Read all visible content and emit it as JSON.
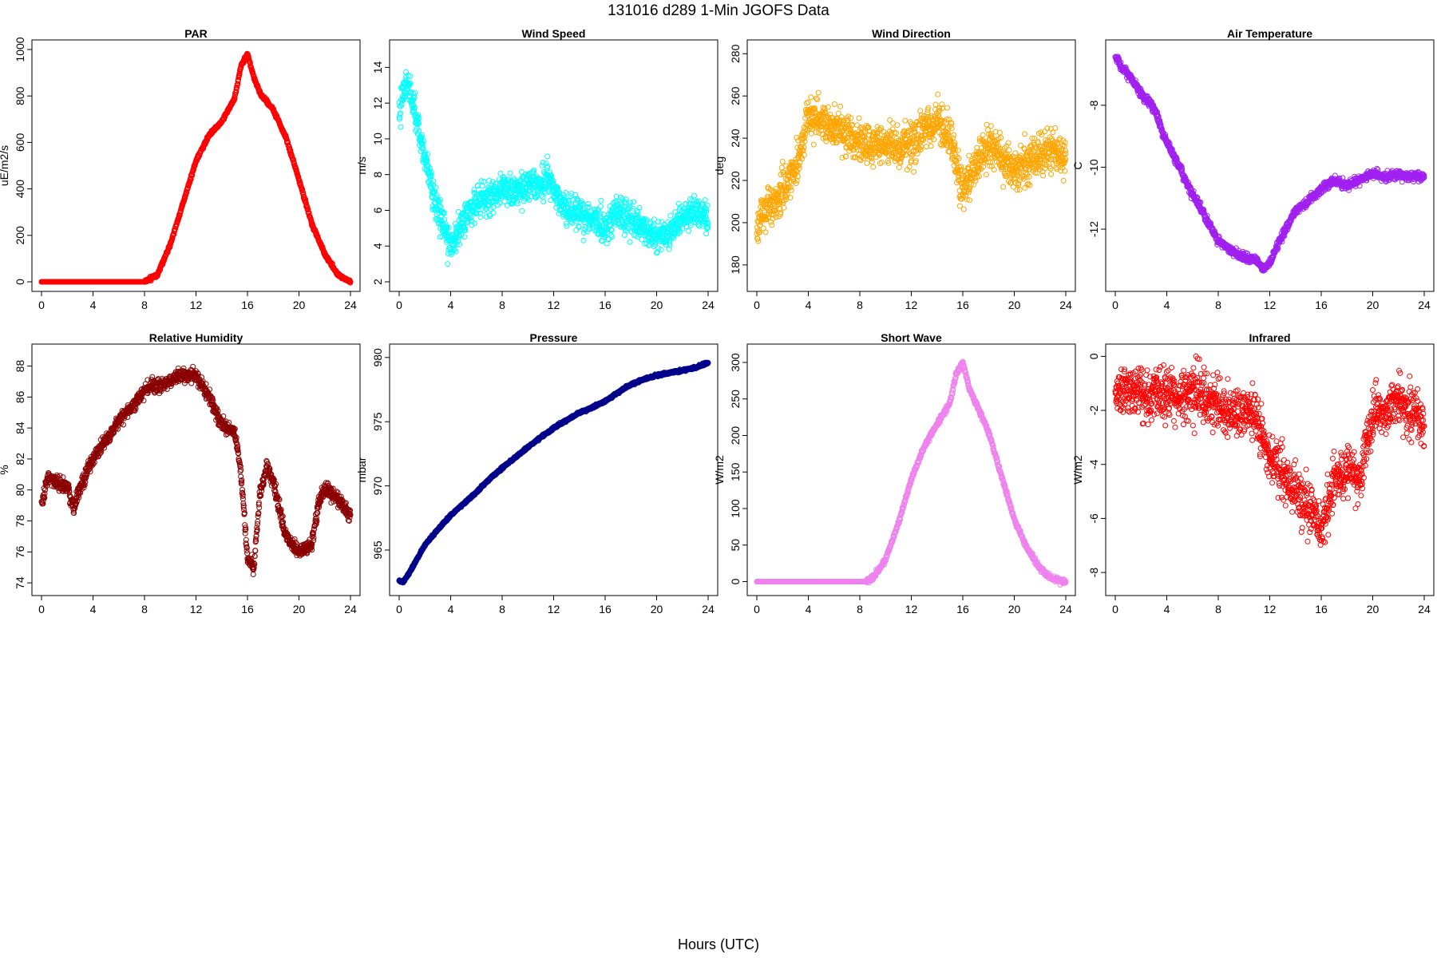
{
  "figure": {
    "title": "131016   d289   1-Min  JGOFS Data",
    "xlabel": "Hours (UTC)"
  },
  "chart_data": [
    {
      "type": "scatter",
      "title": "PAR",
      "ylabel": "uE/m2/s",
      "color": "#ff0000",
      "xlim": [
        0,
        24
      ],
      "ylim": [
        0,
        1000
      ],
      "xticks": [
        0,
        4,
        8,
        12,
        16,
        20,
        24
      ],
      "yticks": [
        0,
        200,
        400,
        600,
        800,
        1000
      ],
      "noise": 6,
      "series": [
        {
          "x": [
            0,
            8,
            9,
            10,
            11,
            12,
            13,
            14,
            15,
            15.5,
            16,
            16.5,
            17,
            18,
            19,
            20,
            21,
            22,
            23,
            24
          ],
          "y": [
            0,
            0,
            30,
            160,
            340,
            520,
            630,
            690,
            790,
            930,
            980,
            880,
            810,
            740,
            620,
            440,
            250,
            120,
            30,
            0
          ]
        }
      ]
    },
    {
      "type": "scatter",
      "title": "Wind Speed",
      "ylabel": "m/s",
      "color": "#00ffff",
      "xlim": [
        0,
        24
      ],
      "ylim": [
        2,
        15
      ],
      "xticks": [
        0,
        4,
        8,
        12,
        16,
        20,
        24
      ],
      "yticks": [
        2,
        4,
        6,
        8,
        10,
        12,
        14
      ],
      "noise": 0.8,
      "series": [
        {
          "x": [
            0,
            0.5,
            1,
            1.5,
            2,
            2.5,
            3,
            3.5,
            4,
            5,
            6,
            7,
            8,
            9,
            10,
            11,
            11.5,
            12,
            13,
            14,
            15,
            16,
            17,
            18,
            19,
            20,
            21,
            22,
            23,
            24
          ],
          "y": [
            11.5,
            13.5,
            12,
            10.5,
            9,
            7.5,
            6,
            5,
            4,
            5.5,
            6.5,
            6.8,
            7.2,
            7,
            7.3,
            7.5,
            8,
            7.2,
            6,
            5.8,
            5.5,
            5,
            6,
            5.5,
            5,
            4.5,
            4.8,
            5.5,
            6,
            5.5
          ]
        }
      ]
    },
    {
      "type": "scatter",
      "title": "Wind Direction",
      "ylabel": "deg",
      "color": "#ffa500",
      "xlim": [
        0,
        24
      ],
      "ylim": [
        172,
        282
      ],
      "xticks": [
        0,
        4,
        8,
        12,
        16,
        20,
        24
      ],
      "yticks": [
        180,
        200,
        220,
        240,
        260,
        280
      ],
      "noise": 9,
      "series": [
        {
          "x": [
            0,
            1,
            2,
            3,
            4,
            5,
            6,
            7,
            8,
            9,
            10,
            11,
            12,
            13,
            14,
            15,
            16,
            17,
            18,
            19,
            20,
            21,
            22,
            23,
            24
          ],
          "y": [
            200,
            208,
            215,
            225,
            250,
            248,
            245,
            240,
            238,
            237,
            238,
            236,
            237,
            242,
            250,
            240,
            215,
            228,
            236,
            232,
            225,
            228,
            232,
            235,
            230
          ]
        }
      ]
    },
    {
      "type": "scatter",
      "title": "Air Temperature",
      "ylabel": "C",
      "color": "#a020f0",
      "xlim": [
        0,
        24
      ],
      "ylim": [
        -13.7,
        -6.2
      ],
      "xticks": [
        0,
        4,
        8,
        12,
        16,
        20,
        24
      ],
      "yticks": [
        -12,
        -10,
        -8
      ],
      "noise": 0.12,
      "series": [
        {
          "x": [
            0,
            0.5,
            1,
            1.5,
            2,
            3,
            4,
            5,
            6,
            7,
            8,
            9,
            10,
            11,
            11.5,
            12,
            12.5,
            13,
            14,
            15,
            16,
            17,
            18,
            19,
            20,
            21,
            22,
            23,
            24
          ],
          "y": [
            -6.4,
            -6.8,
            -7,
            -7.3,
            -7.6,
            -8.1,
            -9.2,
            -10,
            -10.9,
            -11.6,
            -12.4,
            -12.7,
            -12.9,
            -13,
            -13.3,
            -13.1,
            -12.6,
            -12.2,
            -11.4,
            -11.1,
            -10.7,
            -10.4,
            -10.6,
            -10.4,
            -10.2,
            -10.3,
            -10.25,
            -10.3,
            -10.3
          ]
        }
      ]
    },
    {
      "type": "scatter",
      "title": "Relative Humidity",
      "ylabel": "%",
      "color": "#8b0000",
      "xlim": [
        0,
        24
      ],
      "ylim": [
        73.8,
        88.8
      ],
      "xticks": [
        0,
        4,
        8,
        12,
        16,
        20,
        24
      ],
      "yticks": [
        74,
        76,
        78,
        80,
        82,
        84,
        86,
        88
      ],
      "noise": 0.4,
      "series": [
        {
          "x": [
            0,
            0.5,
            1,
            2,
            2.5,
            3,
            4,
            5,
            6,
            7,
            8,
            9,
            10,
            11,
            12,
            12.5,
            13,
            14,
            15,
            15.5,
            16,
            16.5,
            17,
            17.5,
            18,
            19,
            20,
            21,
            21.5,
            22,
            23,
            24
          ],
          "y": [
            79,
            80.8,
            80.5,
            80.2,
            78.8,
            80.2,
            82,
            83.2,
            84.5,
            85.3,
            86.5,
            86.8,
            87,
            87.5,
            87.4,
            86.8,
            86,
            84.2,
            83.8,
            81,
            75.5,
            75,
            80,
            81.5,
            80.5,
            77,
            76,
            76.5,
            79,
            80,
            79.5,
            78.3
          ]
        }
      ]
    },
    {
      "type": "scatter",
      "title": "Pressure",
      "ylabel": "mbar",
      "color": "#00008b",
      "xlim": [
        0,
        24
      ],
      "ylim": [
        962.2,
        980.3
      ],
      "xticks": [
        0,
        4,
        8,
        12,
        16,
        20,
        24
      ],
      "yticks": [
        965,
        970,
        975,
        980
      ],
      "noise": 0.08,
      "series": [
        {
          "x": [
            0,
            0.3,
            0.6,
            1,
            1.5,
            2,
            3,
            4,
            5,
            6,
            7,
            8,
            9,
            10,
            11,
            12,
            13,
            14,
            15,
            16,
            17,
            18,
            19,
            20,
            21,
            22,
            23,
            24
          ],
          "y": [
            962.6,
            962.5,
            962.9,
            963.6,
            964.5,
            965.4,
            966.6,
            967.7,
            968.6,
            969.5,
            970.5,
            971.4,
            972.2,
            973,
            973.8,
            974.5,
            975.1,
            975.7,
            976.1,
            976.6,
            977.3,
            977.9,
            978.3,
            978.6,
            978.8,
            979,
            979.2,
            979.6
          ]
        }
      ]
    },
    {
      "type": "scatter",
      "title": "Short Wave",
      "ylabel": "W/m2",
      "color": "#ee82ee",
      "xlim": [
        0,
        24
      ],
      "ylim": [
        -6,
        312
      ],
      "xticks": [
        0,
        4,
        8,
        12,
        16,
        20,
        24
      ],
      "yticks": [
        0,
        50,
        100,
        150,
        200,
        250,
        300
      ],
      "noise": 3,
      "series": [
        {
          "x": [
            0,
            8.5,
            9,
            10,
            11,
            12,
            13,
            14,
            15,
            15.5,
            16,
            16.5,
            17,
            18,
            19,
            20,
            21,
            22,
            23,
            24
          ],
          "y": [
            0,
            0,
            5,
            30,
            80,
            140,
            185,
            215,
            245,
            285,
            300,
            265,
            245,
            205,
            145,
            85,
            45,
            18,
            3,
            0
          ]
        }
      ]
    },
    {
      "type": "scatter",
      "title": "Infrared",
      "ylabel": "W/m2",
      "color": "#ff0000",
      "xlim": [
        0,
        24
      ],
      "ylim": [
        -8.5,
        0.1
      ],
      "xticks": [
        0,
        4,
        8,
        12,
        16,
        20,
        24
      ],
      "yticks": [
        -8,
        -6,
        -4,
        -2,
        0
      ],
      "noise": 0.8,
      "series": [
        {
          "x": [
            0,
            1,
            2,
            3,
            4,
            5,
            6,
            7,
            8,
            9,
            10,
            11,
            12,
            13,
            14,
            15,
            16,
            17,
            18,
            19,
            20,
            21,
            22,
            23,
            24
          ],
          "y": [
            -1.4,
            -1.2,
            -1.4,
            -1.5,
            -1.3,
            -1.6,
            -1.2,
            -1.5,
            -1.8,
            -2.2,
            -2,
            -2.3,
            -3.8,
            -4.4,
            -5,
            -5.6,
            -6.4,
            -4.5,
            -4.2,
            -4.5,
            -2.2,
            -2,
            -1.7,
            -2,
            -2.6
          ]
        }
      ]
    }
  ]
}
